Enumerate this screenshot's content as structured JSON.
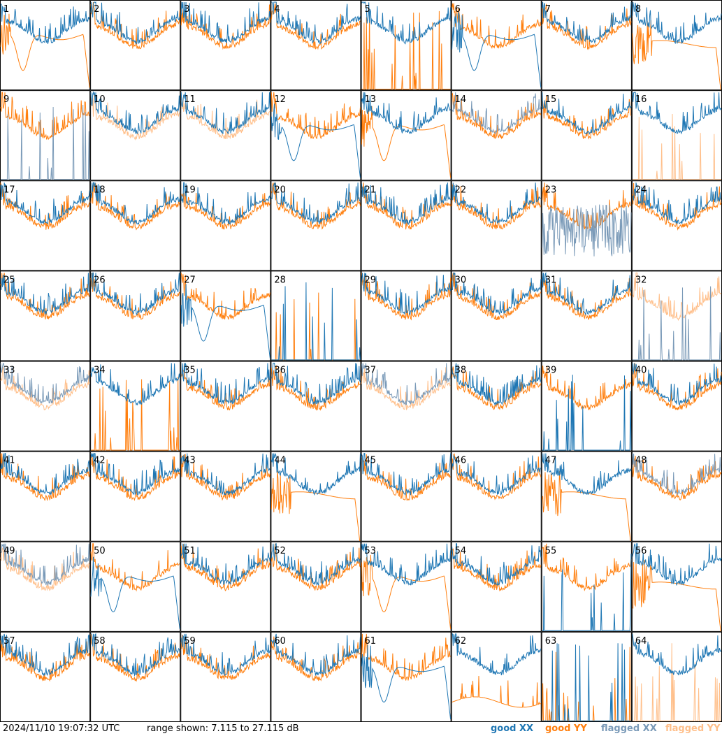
{
  "colors": {
    "good_xx": "#1f77b4",
    "good_yy": "#ff7f0e",
    "flagged_xx": "#7a9ab8",
    "flagged_yy": "#ffbf8a",
    "border": "#000000"
  },
  "footer": {
    "timestamp": "2024/11/10 19:07:32 UTC",
    "range": "range shown: 7.115 to 27.115 dB",
    "legend": [
      "good XX",
      "good YY",
      "flagged XX",
      "flagged YY"
    ]
  },
  "chart_data": {
    "type": "line",
    "layout": "8x8 small multiples",
    "ylim": [
      7.115,
      27.115
    ],
    "y_unit": "dB",
    "series_names": [
      "good XX",
      "good YY",
      "flagged XX",
      "flagged YY"
    ],
    "panels": [
      {
        "id": "1",
        "xx": "good",
        "yy": "good",
        "xx_shape": "normal",
        "yy_shape": "dip"
      },
      {
        "id": "2",
        "xx": "good",
        "yy": "good",
        "xx_shape": "normal",
        "yy_shape": "normal"
      },
      {
        "id": "3",
        "xx": "good",
        "yy": "good",
        "xx_shape": "normal",
        "yy_shape": "normal"
      },
      {
        "id": "4",
        "xx": "good",
        "yy": "good",
        "xx_shape": "normal",
        "yy_shape": "normal"
      },
      {
        "id": "5",
        "xx": "good",
        "yy": "good",
        "xx_shape": "normal",
        "yy_shape": "dead"
      },
      {
        "id": "6",
        "xx": "good",
        "yy": "good",
        "xx_shape": "dip",
        "yy_shape": "normal"
      },
      {
        "id": "7",
        "xx": "good",
        "yy": "good",
        "xx_shape": "normal",
        "yy_shape": "normal"
      },
      {
        "id": "8",
        "xx": "good",
        "yy": "good",
        "xx_shape": "normal",
        "yy_shape": "flat"
      },
      {
        "id": "9",
        "xx": "flagged",
        "yy": "good",
        "xx_shape": "dead",
        "yy_shape": "normal"
      },
      {
        "id": "10",
        "xx": "good",
        "yy": "flagged",
        "xx_shape": "normal",
        "yy_shape": "normal"
      },
      {
        "id": "11",
        "xx": "good",
        "yy": "flagged",
        "xx_shape": "normal",
        "yy_shape": "normal"
      },
      {
        "id": "12",
        "xx": "good",
        "yy": "good",
        "xx_shape": "dip",
        "yy_shape": "normal"
      },
      {
        "id": "13",
        "xx": "good",
        "yy": "good",
        "xx_shape": "normal",
        "yy_shape": "dip"
      },
      {
        "id": "14",
        "xx": "flagged",
        "yy": "good",
        "xx_shape": "normal",
        "yy_shape": "normal"
      },
      {
        "id": "15",
        "xx": "good",
        "yy": "good",
        "xx_shape": "normal",
        "yy_shape": "normal"
      },
      {
        "id": "16",
        "xx": "good",
        "yy": "flagged",
        "xx_shape": "normal",
        "yy_shape": "dead"
      },
      {
        "id": "17",
        "xx": "good",
        "yy": "good",
        "xx_shape": "normal",
        "yy_shape": "normal"
      },
      {
        "id": "18",
        "xx": "good",
        "yy": "good",
        "xx_shape": "normal",
        "yy_shape": "normal"
      },
      {
        "id": "19",
        "xx": "good",
        "yy": "good",
        "xx_shape": "normal",
        "yy_shape": "normal"
      },
      {
        "id": "20",
        "xx": "good",
        "yy": "good",
        "xx_shape": "normal",
        "yy_shape": "normal"
      },
      {
        "id": "21",
        "xx": "good",
        "yy": "good",
        "xx_shape": "normal",
        "yy_shape": "normal"
      },
      {
        "id": "22",
        "xx": "good",
        "yy": "good",
        "xx_shape": "normal",
        "yy_shape": "normal"
      },
      {
        "id": "23",
        "xx": "flagged",
        "yy": "good",
        "xx_shape": "noise",
        "yy_shape": "normal"
      },
      {
        "id": "24",
        "xx": "good",
        "yy": "good",
        "xx_shape": "normal",
        "yy_shape": "normal"
      },
      {
        "id": "25",
        "xx": "good",
        "yy": "good",
        "xx_shape": "normal",
        "yy_shape": "normal"
      },
      {
        "id": "26",
        "xx": "good",
        "yy": "good",
        "xx_shape": "normal",
        "yy_shape": "normal"
      },
      {
        "id": "27",
        "xx": "good",
        "yy": "good",
        "xx_shape": "dip",
        "yy_shape": "normal"
      },
      {
        "id": "28",
        "xx": "good",
        "yy": "good",
        "xx_shape": "dead",
        "yy_shape": "dead"
      },
      {
        "id": "29",
        "xx": "good",
        "yy": "good",
        "xx_shape": "normal",
        "yy_shape": "normal"
      },
      {
        "id": "30",
        "xx": "good",
        "yy": "good",
        "xx_shape": "normal",
        "yy_shape": "normal"
      },
      {
        "id": "31",
        "xx": "good",
        "yy": "good",
        "xx_shape": "normal",
        "yy_shape": "normal"
      },
      {
        "id": "32",
        "xx": "flagged",
        "yy": "flagged",
        "xx_shape": "dead",
        "yy_shape": "normal"
      },
      {
        "id": "33",
        "xx": "flagged",
        "yy": "flagged",
        "xx_shape": "normal",
        "yy_shape": "normal"
      },
      {
        "id": "34",
        "xx": "good",
        "yy": "good",
        "xx_shape": "normal",
        "yy_shape": "dead"
      },
      {
        "id": "35",
        "xx": "good",
        "yy": "good",
        "xx_shape": "normal",
        "yy_shape": "normal"
      },
      {
        "id": "36",
        "xx": "good",
        "yy": "good",
        "xx_shape": "normal",
        "yy_shape": "normal"
      },
      {
        "id": "37",
        "xx": "flagged",
        "yy": "flagged",
        "xx_shape": "normal",
        "yy_shape": "normal"
      },
      {
        "id": "38",
        "xx": "good",
        "yy": "good",
        "xx_shape": "normal",
        "yy_shape": "normal"
      },
      {
        "id": "39",
        "xx": "good",
        "yy": "good",
        "xx_shape": "dead",
        "yy_shape": "normal"
      },
      {
        "id": "40",
        "xx": "good",
        "yy": "good",
        "xx_shape": "normal",
        "yy_shape": "normal"
      },
      {
        "id": "41",
        "xx": "good",
        "yy": "good",
        "xx_shape": "normal",
        "yy_shape": "normal"
      },
      {
        "id": "42",
        "xx": "good",
        "yy": "good",
        "xx_shape": "normal",
        "yy_shape": "normal"
      },
      {
        "id": "43",
        "xx": "good",
        "yy": "good",
        "xx_shape": "normal",
        "yy_shape": "normal"
      },
      {
        "id": "44",
        "xx": "good",
        "yy": "good",
        "xx_shape": "normal",
        "yy_shape": "flat"
      },
      {
        "id": "45",
        "xx": "good",
        "yy": "good",
        "xx_shape": "normal",
        "yy_shape": "normal"
      },
      {
        "id": "46",
        "xx": "good",
        "yy": "good",
        "xx_shape": "normal",
        "yy_shape": "normal"
      },
      {
        "id": "47",
        "xx": "good",
        "yy": "good",
        "xx_shape": "normal",
        "yy_shape": "flat"
      },
      {
        "id": "48",
        "xx": "flagged",
        "yy": "good",
        "xx_shape": "normal",
        "yy_shape": "normal"
      },
      {
        "id": "49",
        "xx": "flagged",
        "yy": "flagged",
        "xx_shape": "normal",
        "yy_shape": "normal"
      },
      {
        "id": "50",
        "xx": "good",
        "yy": "good",
        "xx_shape": "dip",
        "yy_shape": "normal"
      },
      {
        "id": "51",
        "xx": "good",
        "yy": "good",
        "xx_shape": "normal",
        "yy_shape": "normal"
      },
      {
        "id": "52",
        "xx": "good",
        "yy": "good",
        "xx_shape": "normal",
        "yy_shape": "normal"
      },
      {
        "id": "53",
        "xx": "good",
        "yy": "good",
        "xx_shape": "normal",
        "yy_shape": "dip"
      },
      {
        "id": "54",
        "xx": "good",
        "yy": "good",
        "xx_shape": "normal",
        "yy_shape": "normal"
      },
      {
        "id": "55",
        "xx": "good",
        "yy": "good",
        "xx_shape": "dead",
        "yy_shape": "normal"
      },
      {
        "id": "56",
        "xx": "good",
        "yy": "good",
        "xx_shape": "normal",
        "yy_shape": "flat"
      },
      {
        "id": "57",
        "xx": "good",
        "yy": "good",
        "xx_shape": "normal",
        "yy_shape": "normal"
      },
      {
        "id": "58",
        "xx": "good",
        "yy": "good",
        "xx_shape": "normal",
        "yy_shape": "normal"
      },
      {
        "id": "59",
        "xx": "good",
        "yy": "good",
        "xx_shape": "normal",
        "yy_shape": "normal"
      },
      {
        "id": "60",
        "xx": "good",
        "yy": "good",
        "xx_shape": "normal",
        "yy_shape": "normal"
      },
      {
        "id": "61",
        "xx": "good",
        "yy": "good",
        "xx_shape": "dip",
        "yy_shape": "normal"
      },
      {
        "id": "62",
        "xx": "good",
        "yy": "good",
        "xx_shape": "normal",
        "yy_shape": "low"
      },
      {
        "id": "63",
        "xx": "good",
        "yy": "good",
        "xx_shape": "dead",
        "yy_shape": "dead"
      },
      {
        "id": "64",
        "xx": "good",
        "yy": "flagged",
        "xx_shape": "normal",
        "yy_shape": "dead"
      }
    ]
  }
}
